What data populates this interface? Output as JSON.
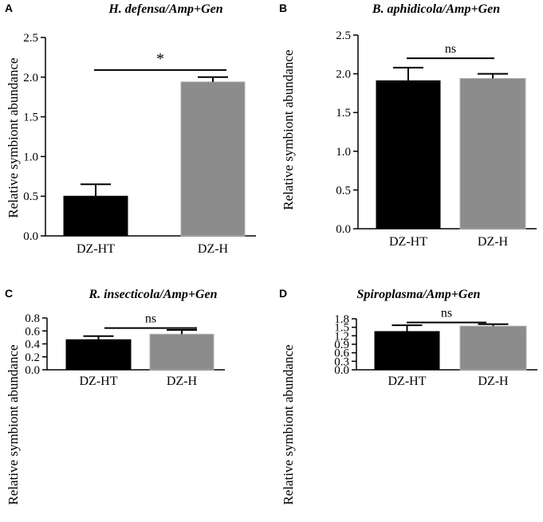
{
  "chart_data": [
    {
      "panel": "A",
      "type": "bar",
      "title": "H. defensa/Amp+Gen",
      "ylabel": "Relative symbiont abundance",
      "categories": [
        "DZ-HT",
        "DZ-H"
      ],
      "values": [
        0.5,
        1.94
      ],
      "errors": [
        0.15,
        0.06
      ],
      "colors": [
        "#000000",
        "#8c8c8c"
      ],
      "ylim": [
        0,
        2.5
      ],
      "yticks": [
        0.0,
        0.5,
        1.0,
        1.5,
        2.0,
        2.5
      ],
      "ytick_labels": [
        "0.0",
        "0.5",
        "1.0",
        "1.5",
        "2.0",
        "2.5"
      ],
      "significance": {
        "label": "*",
        "y": 2.09
      }
    },
    {
      "panel": "B",
      "type": "bar",
      "title": "B. aphidicola/Amp+Gen",
      "ylabel": "Relative symbiont abundance",
      "categories": [
        "DZ-HT",
        "DZ-H"
      ],
      "values": [
        1.91,
        1.94
      ],
      "errors": [
        0.17,
        0.06
      ],
      "colors": [
        "#000000",
        "#8c8c8c"
      ],
      "ylim": [
        0,
        2.5
      ],
      "yticks": [
        0.0,
        0.5,
        1.0,
        1.5,
        2.0,
        2.5
      ],
      "ytick_labels": [
        "0.0",
        "0.5",
        "1.0",
        "1.5",
        "2.0",
        "2.5"
      ],
      "significance": {
        "label": "ns",
        "y": 2.2
      }
    },
    {
      "panel": "C",
      "type": "bar",
      "title": "R. insecticola/Amp+Gen",
      "ylabel": "Relative symbiont abundance",
      "categories": [
        "DZ-HT",
        "DZ-H"
      ],
      "values": [
        0.465,
        0.55
      ],
      "errors": [
        0.055,
        0.065
      ],
      "colors": [
        "#000000",
        "#8c8c8c"
      ],
      "ylim": [
        0,
        0.8
      ],
      "yticks": [
        0.0,
        0.2,
        0.4,
        0.6,
        0.8
      ],
      "ytick_labels": [
        "0.0",
        "0.2",
        "0.4",
        "0.6",
        "0.8"
      ],
      "significance": {
        "label": "ns",
        "y": 0.645
      }
    },
    {
      "panel": "D",
      "type": "bar",
      "title": "Spiroplasma/Amp+Gen",
      "ylabel": "Relative symbiont abundance",
      "categories": [
        "DZ-HT",
        "DZ-H"
      ],
      "values": [
        1.35,
        1.54
      ],
      "errors": [
        0.22,
        0.07
      ],
      "colors": [
        "#000000",
        "#8c8c8c"
      ],
      "ylim": [
        0,
        1.8
      ],
      "yticks": [
        0.0,
        0.3,
        0.6,
        0.9,
        1.2,
        1.5,
        1.8
      ],
      "ytick_labels": [
        "0.0",
        "0.3",
        "0.6",
        "0.9",
        "1.2",
        "1.5",
        "1.8"
      ],
      "significance": {
        "label": "ns",
        "y": 1.67
      }
    }
  ]
}
